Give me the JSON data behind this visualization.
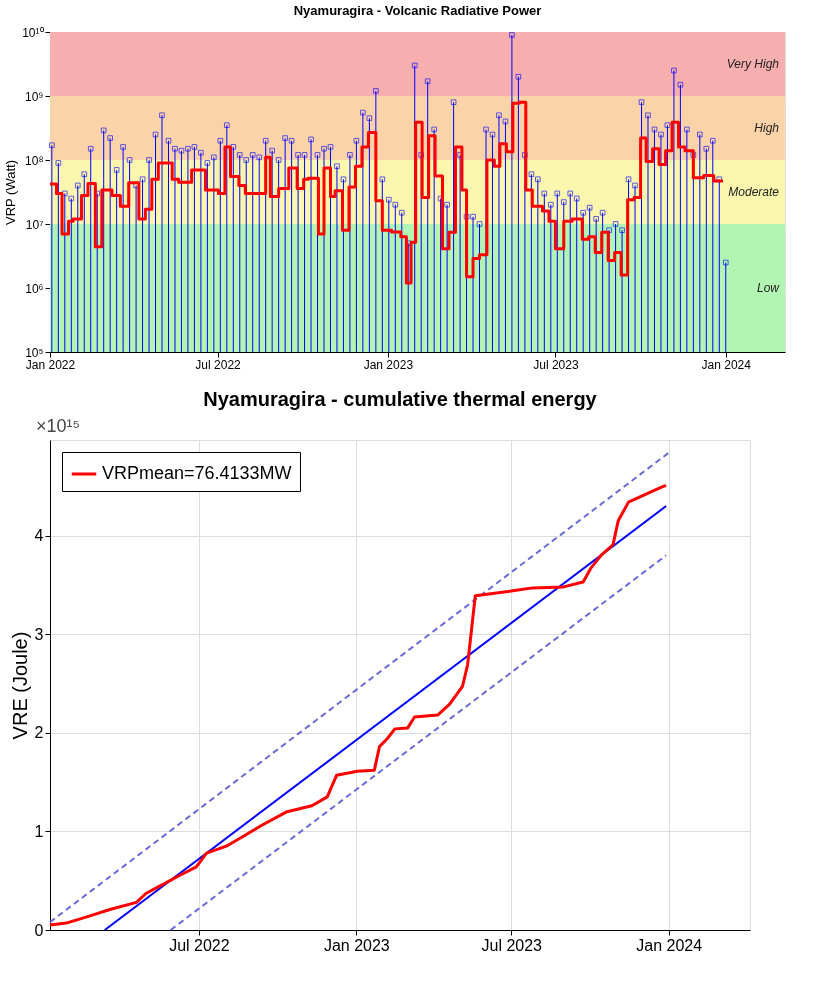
{
  "chart_data": [
    {
      "type": "lollipop",
      "title": "Nyamuragira - Volcanic Radiative Power",
      "ylabel": "VRP (Watt)",
      "log": true,
      "grid": true,
      "xlim": [
        "2022-01-01",
        "2024-03-05"
      ],
      "xticks": [
        {
          "value": "2022-01-01",
          "label": "Jan 2022"
        },
        {
          "value": "2022-07-01",
          "label": "Jul 2022"
        },
        {
          "value": "2023-01-01",
          "label": "Jan 2023"
        },
        {
          "value": "2023-07-01",
          "label": "Jul 2023"
        },
        {
          "value": "2024-01-01",
          "label": "Jan 2024"
        }
      ],
      "ylim": [
        100000.0,
        10000000000.0
      ],
      "yticks": [
        {
          "value": 100000.0,
          "label": "10⁵"
        },
        {
          "value": 1000000.0,
          "label": "10⁶"
        },
        {
          "value": 10000000.0,
          "label": "10⁷"
        },
        {
          "value": 100000000.0,
          "label": "10⁸"
        },
        {
          "value": 1000000000.0,
          "label": "10⁹"
        },
        {
          "value": 10000000000.0,
          "label": "10¹⁰"
        }
      ],
      "bands": [
        {
          "axis": "y",
          "from": 100000.0,
          "to": 10000000.0,
          "label": "Low",
          "color": "#b2f5b2"
        },
        {
          "axis": "y",
          "from": 10000000.0,
          "to": 100000000.0,
          "label": "Moderate",
          "color": "#fbf6ad"
        },
        {
          "axis": "y",
          "from": 100000000.0,
          "to": 1000000000.0,
          "label": "High",
          "color": "#fbd3a8"
        },
        {
          "axis": "y",
          "from": 1000000000.0,
          "to": 10000000000.0,
          "label": "Very High",
          "color": "#f6aeae"
        }
      ],
      "series": [
        {
          "type": "lollipop",
          "color": "#0000ff",
          "marker": "square",
          "x": [
            "2022-01-03",
            "2022-01-10",
            "2022-01-17",
            "2022-01-24",
            "2022-01-31",
            "2022-02-07",
            "2022-02-14",
            "2022-02-21",
            "2022-02-28",
            "2022-03-07",
            "2022-03-14",
            "2022-03-21",
            "2022-03-28",
            "2022-04-04",
            "2022-04-11",
            "2022-04-18",
            "2022-04-25",
            "2022-05-02",
            "2022-05-09",
            "2022-05-16",
            "2022-05-23",
            "2022-05-30",
            "2022-06-06",
            "2022-06-13",
            "2022-06-20",
            "2022-06-27",
            "2022-07-04",
            "2022-07-11",
            "2022-07-18",
            "2022-07-25",
            "2022-08-01",
            "2022-08-08",
            "2022-08-15",
            "2022-08-22",
            "2022-08-29",
            "2022-09-05",
            "2022-09-12",
            "2022-09-19",
            "2022-09-26",
            "2022-10-03",
            "2022-10-10",
            "2022-10-17",
            "2022-10-24",
            "2022-10-31",
            "2022-11-07",
            "2022-11-14",
            "2022-11-21",
            "2022-11-28",
            "2022-12-05",
            "2022-12-12",
            "2022-12-19",
            "2022-12-26",
            "2023-01-02",
            "2023-01-09",
            "2023-01-16",
            "2023-01-23",
            "2023-01-30",
            "2023-02-06",
            "2023-02-13",
            "2023-02-20",
            "2023-02-27",
            "2023-03-06",
            "2023-03-13",
            "2023-03-20",
            "2023-03-27",
            "2023-04-03",
            "2023-04-10",
            "2023-04-17",
            "2023-04-24",
            "2023-05-01",
            "2023-05-08",
            "2023-05-15",
            "2023-05-22",
            "2023-05-29",
            "2023-06-05",
            "2023-06-12",
            "2023-06-19",
            "2023-06-26",
            "2023-07-03",
            "2023-07-10",
            "2023-07-17",
            "2023-07-24",
            "2023-07-31",
            "2023-08-07",
            "2023-08-14",
            "2023-08-21",
            "2023-08-28",
            "2023-09-04",
            "2023-09-11",
            "2023-09-18",
            "2023-09-25",
            "2023-10-02",
            "2023-10-09",
            "2023-10-16",
            "2023-10-23",
            "2023-10-30",
            "2023-11-06",
            "2023-11-13",
            "2023-11-20",
            "2023-11-27",
            "2023-12-04",
            "2023-12-11",
            "2023-12-18",
            "2023-12-25",
            "2024-01-01"
          ],
          "values": [
            170000000.0,
            90000000.0,
            30000000.0,
            25000000.0,
            40000000.0,
            60000000.0,
            150000000.0,
            30000000.0,
            290000000.0,
            220000000.0,
            70000000.0,
            160000000.0,
            100000000.0,
            40000000.0,
            50000000.0,
            100000000.0,
            250000000.0,
            500000000.0,
            200000000.0,
            150000000.0,
            140000000.0,
            150000000.0,
            160000000.0,
            130000000.0,
            90000000.0,
            110000000.0,
            200000000.0,
            350000000.0,
            160000000.0,
            120000000.0,
            100000000.0,
            120000000.0,
            110000000.0,
            200000000.0,
            140000000.0,
            100000000.0,
            220000000.0,
            200000000.0,
            120000000.0,
            120000000.0,
            210000000.0,
            120000000.0,
            150000000.0,
            160000000.0,
            80000000.0,
            50000000.0,
            120000000.0,
            200000000.0,
            550000000.0,
            450000000.0,
            1200000000.0,
            50000000.0,
            24000000.0,
            20000000.0,
            15000000.0,
            5000000.0,
            3000000000.0,
            120000000.0,
            1700000000.0,
            300000000.0,
            25000000.0,
            20000000.0,
            800000000.0,
            120000000.0,
            13000000.0,
            13000000.0,
            10000000.0,
            300000000.0,
            250000000.0,
            500000000.0,
            400000000.0,
            9000000000.0,
            2000000000.0,
            120000000.0,
            60000000.0,
            50000000.0,
            30000000.0,
            20000000.0,
            30000000.0,
            22000000.0,
            30000000.0,
            25000000.0,
            15000000.0,
            18000000.0,
            12000000.0,
            15000000.0,
            8000000.0,
            10000000.0,
            8000000.0,
            50000000.0,
            40000000.0,
            800000000.0,
            500000000.0,
            300000000.0,
            250000000.0,
            350000000.0,
            2500000000.0,
            1500000000.0,
            300000000.0,
            120000000.0,
            250000000.0,
            150000000.0,
            200000000.0,
            50000000.0,
            2500000.0
          ]
        },
        {
          "type": "step",
          "color": "#ff0000",
          "x": [
            "2022-01-01",
            "2022-01-08",
            "2022-01-14",
            "2022-01-21",
            "2022-01-26",
            "2022-02-04",
            "2022-02-11",
            "2022-02-19",
            "2022-02-26",
            "2022-03-09",
            "2022-03-18",
            "2022-03-27",
            "2022-04-07",
            "2022-04-14",
            "2022-04-21",
            "2022-04-28",
            "2022-05-13",
            "2022-05-20",
            "2022-06-03",
            "2022-06-18",
            "2022-07-02",
            "2022-07-09",
            "2022-07-15",
            "2022-07-24",
            "2022-07-31",
            "2022-08-09",
            "2022-08-22",
            "2022-08-27",
            "2022-09-05",
            "2022-09-16",
            "2022-09-25",
            "2022-10-02",
            "2022-10-07",
            "2022-10-18",
            "2022-10-24",
            "2022-10-31",
            "2022-11-05",
            "2022-11-13",
            "2022-11-20",
            "2022-11-27",
            "2022-12-04",
            "2022-12-11",
            "2022-12-19",
            "2022-12-26",
            "2023-01-05",
            "2023-01-15",
            "2023-01-21",
            "2023-01-26",
            "2023-01-31",
            "2023-02-07",
            "2023-02-14",
            "2023-02-21",
            "2023-03-01",
            "2023-03-08",
            "2023-03-15",
            "2023-03-22",
            "2023-03-27",
            "2023-04-03",
            "2023-04-10",
            "2023-04-18",
            "2023-04-26",
            "2023-05-02",
            "2023-05-09",
            "2023-05-16",
            "2023-05-23",
            "2023-05-30",
            "2023-06-06",
            "2023-06-17",
            "2023-06-24",
            "2023-07-01",
            "2023-07-10",
            "2023-07-19",
            "2023-07-30",
            "2023-08-06",
            "2023-08-13",
            "2023-08-20",
            "2023-08-27",
            "2023-09-03",
            "2023-09-10",
            "2023-09-17",
            "2023-09-24",
            "2023-10-01",
            "2023-10-07",
            "2023-10-14",
            "2023-10-21",
            "2023-10-28",
            "2023-11-04",
            "2023-11-11",
            "2023-11-18",
            "2023-11-27",
            "2023-12-08",
            "2023-12-19",
            "2023-12-29"
          ],
          "values": [
            42000000.0,
            30000000.0,
            7000000.0,
            11000000.0,
            12000000.0,
            28000000.0,
            43000000.0,
            4400000.0,
            34000000.0,
            28000000.0,
            19000000.0,
            44000000.0,
            12000000.0,
            17000000.0,
            50000000.0,
            90000000.0,
            50000000.0,
            45000000.0,
            70000000.0,
            34000000.0,
            30000000.0,
            160000000.0,
            55000000.0,
            40000000.0,
            30000000.0,
            30000000.0,
            110000000.0,
            27000000.0,
            36000000.0,
            75000000.0,
            36000000.0,
            50000000.0,
            52000000.0,
            7000000.0,
            75000000.0,
            27000000.0,
            33000000.0,
            8000000.0,
            38000000.0,
            80000000.0,
            160000000.0,
            270000000.0,
            23000000.0,
            8000000.0,
            7500000.0,
            6300000.0,
            1200000.0,
            5200000.0,
            390000000.0,
            26000000.0,
            240000000.0,
            56000000.0,
            4100000.0,
            7400000.0,
            160000000.0,
            34000000.0,
            1500000.0,
            2900000.0,
            3300000.0,
            100000000.0,
            80000000.0,
            180000000.0,
            135000000.0,
            770000000.0,
            800000000.0,
            34000000.0,
            19000000.0,
            16000000.0,
            11000000.0,
            4100000.0,
            11000000.0,
            12000000.0,
            5800000.0,
            6300000.0,
            3600000.0,
            7400000.0,
            2700000.0,
            3600000.0,
            1600000.0,
            24000000.0,
            26000000.0,
            220000000.0,
            95000000.0,
            150000000.0,
            85000000.0,
            140000000.0,
            390000000.0,
            160000000.0,
            140000000.0,
            53000000.0,
            57000000.0,
            47000000.0,
            47000000.0
          ]
        }
      ]
    },
    {
      "type": "line",
      "title": "Nyamuragira - cumulative thermal energy",
      "ylabel": "VRE (Joule)",
      "grid": true,
      "legend": "top left",
      "annotations": [
        "×10¹⁵"
      ],
      "xlim": [
        "2022-01-08",
        "2024-04-05"
      ],
      "xticks": [
        {
          "value": "2022-07-01",
          "label": "Jul 2022"
        },
        {
          "value": "2023-01-01",
          "label": "Jan 2023"
        },
        {
          "value": "2023-07-01",
          "label": "Jul 2023"
        },
        {
          "value": "2024-01-01",
          "label": "Jan 2024"
        }
      ],
      "ylim": [
        0,
        4.97
      ],
      "yticks": [
        0,
        1,
        2,
        3,
        4
      ],
      "series": [
        {
          "color": "#6a6ad8",
          "line_style": "dashed",
          "x": [
            "2022-01-08",
            "2024-01-01"
          ],
          "values": [
            0.08,
            4.84
          ]
        },
        {
          "color": "#6a6ad8",
          "line_style": "dashed",
          "x": [
            "2022-05-29",
            "2023-12-29"
          ],
          "values": [
            0,
            3.8
          ]
        },
        {
          "color": "#0000ff",
          "x": [
            "2022-03-13",
            "2023-12-29"
          ],
          "values": [
            0,
            4.3
          ]
        },
        {
          "name": "VRPmean=76.4133MW",
          "color": "#ff0000",
          "x": [
            "2022-01-08",
            "2022-01-27",
            "2022-02-19",
            "2022-03-20",
            "2022-04-19",
            "2022-04-30",
            "2022-05-15",
            "2022-06-10",
            "2022-06-28",
            "2022-07-10",
            "2022-08-02",
            "2022-08-20",
            "2022-09-12",
            "2022-10-12",
            "2022-11-10",
            "2022-11-28",
            "2022-12-09",
            "2023-01-02",
            "2023-01-22",
            "2023-01-28",
            "2023-02-06",
            "2023-02-15",
            "2023-03-02",
            "2023-03-10",
            "2023-04-06",
            "2023-04-20",
            "2023-05-05",
            "2023-05-11",
            "2023-05-20",
            "2023-07-03",
            "2023-07-26",
            "2023-08-31",
            "2023-09-23",
            "2023-10-02",
            "2023-10-14",
            "2023-10-28",
            "2023-11-03",
            "2023-11-15",
            "2023-12-08",
            "2023-12-23",
            "2023-12-29"
          ],
          "values": [
            0.05,
            0.07,
            0.13,
            0.21,
            0.28,
            0.37,
            0.44,
            0.56,
            0.64,
            0.78,
            0.85,
            0.94,
            1.06,
            1.2,
            1.26,
            1.35,
            1.57,
            1.61,
            1.62,
            1.86,
            1.94,
            2.04,
            2.05,
            2.16,
            2.18,
            2.29,
            2.47,
            2.69,
            3.39,
            3.44,
            3.47,
            3.48,
            3.53,
            3.67,
            3.8,
            3.91,
            4.15,
            4.34,
            4.43,
            4.49,
            4.51
          ]
        }
      ]
    }
  ]
}
